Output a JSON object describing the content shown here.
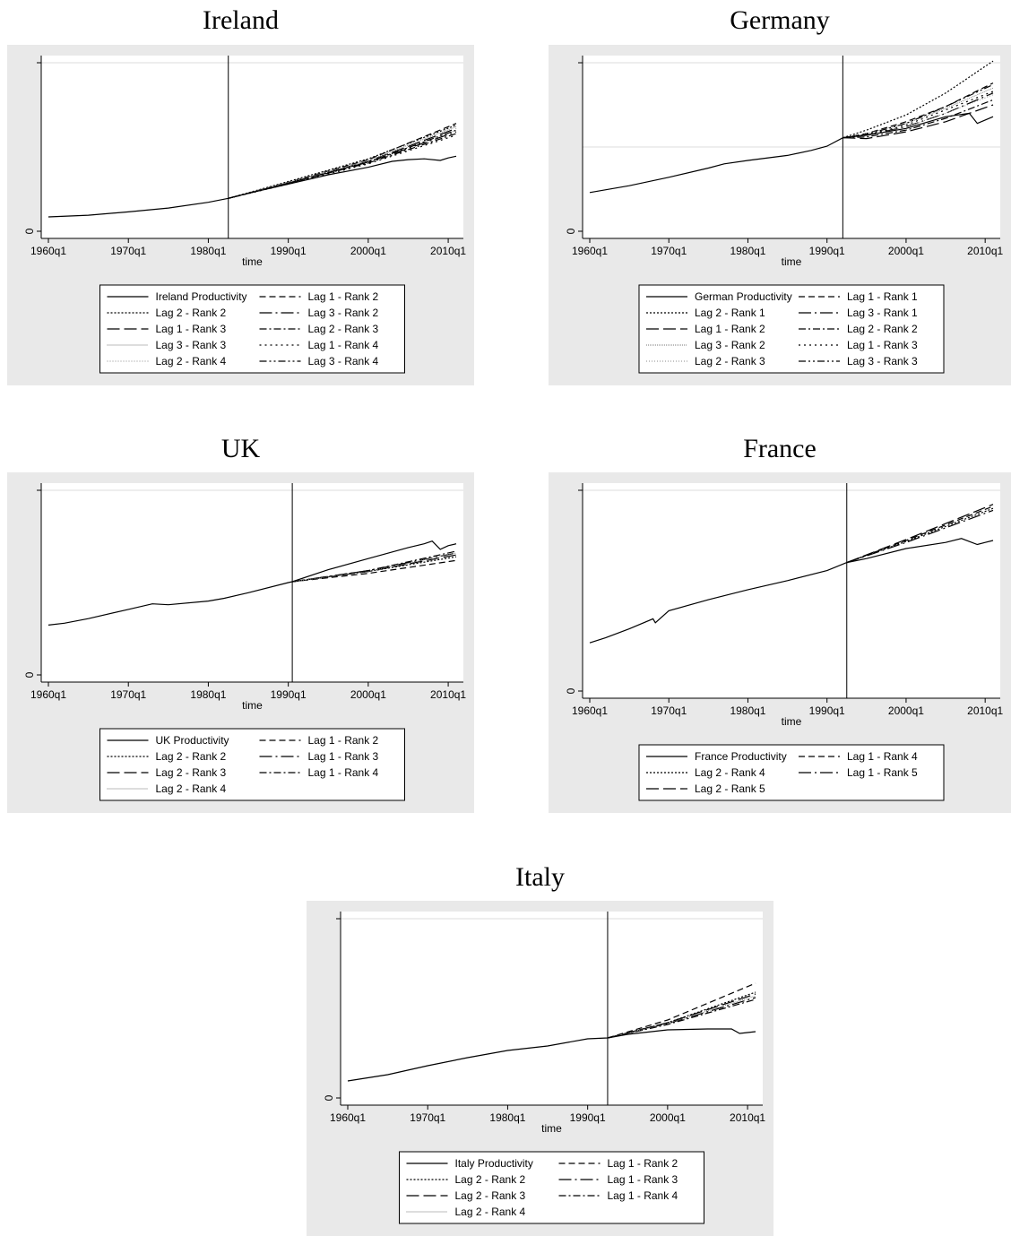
{
  "titles": {
    "ireland": "Ireland",
    "germany": "Germany",
    "uk": "UK",
    "france": "France",
    "italy": "Italy"
  },
  "chart_data": [
    {
      "key": "ireland",
      "type": "line",
      "title": "Ireland",
      "xlabel": "time",
      "ylabel": "",
      "xlim": [
        1960.0,
        2011.0
      ],
      "xticks": [
        "1960q1",
        "1970q1",
        "1980q1",
        "1990q1",
        "2000q1",
        "2010q1"
      ],
      "yticks": [
        "0"
      ],
      "ylim": [
        0,
        100
      ],
      "vline": 1982.5,
      "legend_cols": 2,
      "series": [
        {
          "name": "Ireland Productivity",
          "style": "solid",
          "x": [
            1960,
            1965,
            1970,
            1975,
            1980,
            1982.5,
            1985,
            1990,
            1995,
            2000,
            2003,
            2005,
            2007,
            2009,
            2010,
            2011
          ],
          "y": [
            8.5,
            9.5,
            11.5,
            13.8,
            17.2,
            19.5,
            22.5,
            28,
            33.5,
            38,
            41.5,
            42.5,
            43,
            42,
            43.5,
            44.5
          ]
        },
        {
          "name": "Lag 1 - Rank 2",
          "style": "dash",
          "x": [
            1982.5,
            1990,
            2000,
            2011
          ],
          "y": [
            19.5,
            29,
            42.5,
            64
          ]
        },
        {
          "name": "Lag 2 - Rank 2",
          "style": "dot",
          "x": [
            1982.5,
            1990,
            2000,
            2011
          ],
          "y": [
            19.5,
            29.5,
            43,
            63
          ]
        },
        {
          "name": "Lag 3 - Rank 2",
          "style": "longdashdot",
          "x": [
            1982.5,
            1990,
            2000,
            2011
          ],
          "y": [
            19.5,
            28.5,
            41,
            59
          ]
        },
        {
          "name": "Lag 1 - Rank 3",
          "style": "longdash",
          "x": [
            1982.5,
            1990,
            2000,
            2011
          ],
          "y": [
            19.5,
            28.5,
            41.5,
            61
          ]
        },
        {
          "name": "Lag 2 - Rank 3",
          "style": "dashdot",
          "x": [
            1982.5,
            1990,
            2000,
            2011
          ],
          "y": [
            19.5,
            28.5,
            40.5,
            58
          ]
        },
        {
          "name": "Lag 3 - Rank 3",
          "style": "faint",
          "x": [
            1982.5,
            1990,
            2000,
            2011
          ],
          "y": [
            19.5,
            29,
            42,
            62
          ]
        },
        {
          "name": "Lag 1 - Rank 4",
          "style": "sparsedot",
          "x": [
            1982.5,
            1990,
            2000,
            2011
          ],
          "y": [
            19.5,
            28,
            40,
            57
          ]
        },
        {
          "name": "Lag 2 - Rank 4",
          "style": "faint2",
          "x": [
            1982.5,
            1990,
            2000,
            2011
          ],
          "y": [
            19.5,
            29,
            41.5,
            60
          ]
        },
        {
          "name": "Lag 3 - Rank 4",
          "style": "dashdotdot",
          "x": [
            1982.5,
            1990,
            2000,
            2011
          ],
          "y": [
            19.5,
            28.5,
            41,
            60
          ]
        }
      ]
    },
    {
      "key": "germany",
      "type": "line",
      "title": "Germany",
      "xlabel": "time",
      "ylabel": "",
      "xlim": [
        1960.0,
        2011.0
      ],
      "xticks": [
        "1960q1",
        "1970q1",
        "1980q1",
        "1990q1",
        "2000q1",
        "2010q1"
      ],
      "yticks": [
        "0"
      ],
      "ylim": [
        0,
        100
      ],
      "vline": 1992.0,
      "legend_cols": 2,
      "series": [
        {
          "name": "German Productivity",
          "style": "solid",
          "x": [
            1960,
            1965,
            1970,
            1975,
            1977,
            1980,
            1985,
            1988,
            1990,
            1992,
            1995,
            2000,
            2005,
            2008,
            2009,
            2010,
            2011
          ],
          "y": [
            23,
            27,
            32,
            37.5,
            40,
            42,
            45,
            48,
            50.5,
            55.5,
            57,
            61,
            68,
            70,
            64,
            66,
            68
          ]
        },
        {
          "name": "Lag 1 - Rank 1",
          "style": "dash",
          "x": [
            1992,
            1995,
            2000,
            2005,
            2011
          ],
          "y": [
            55.5,
            58,
            65,
            74,
            88
          ]
        },
        {
          "name": "Lag 2 - Rank 1",
          "style": "dot",
          "x": [
            1992,
            1995,
            2000,
            2005,
            2011
          ],
          "y": [
            55.5,
            60,
            69,
            82,
            101
          ]
        },
        {
          "name": "Lag 3 - Rank 1",
          "style": "longdashdot",
          "x": [
            1992,
            1995,
            2000,
            2005,
            2011
          ],
          "y": [
            55.5,
            57,
            62,
            70,
            82
          ]
        },
        {
          "name": "Lag 1 - Rank 2",
          "style": "longdash",
          "x": [
            1992,
            1995,
            2000,
            2005,
            2011
          ],
          "y": [
            55.5,
            55,
            59,
            65,
            75
          ]
        },
        {
          "name": "Lag 2 - Rank 2",
          "style": "dashdot",
          "x": [
            1992,
            1995,
            2000,
            2005,
            2011
          ],
          "y": [
            55.5,
            56,
            60,
            67,
            78
          ]
        },
        {
          "name": "Lag 3 - Rank 2",
          "style": "faint",
          "x": [
            1992,
            1995,
            2000,
            2005,
            2011
          ],
          "y": [
            55.5,
            58,
            64,
            73,
            85
          ]
        },
        {
          "name": "Lag 1 - Rank 3",
          "style": "sparsedot",
          "x": [
            1992,
            1995,
            2000,
            2005,
            2011
          ],
          "y": [
            55.5,
            57,
            63,
            72,
            83
          ]
        },
        {
          "name": "Lag 2 - Rank 3",
          "style": "faint2",
          "x": [
            1992,
            1995,
            2000,
            2005,
            2011
          ],
          "y": [
            55.5,
            56.5,
            62,
            70,
            81
          ]
        },
        {
          "name": "Lag 3 - Rank 3",
          "style": "dashdotdot",
          "x": [
            1992,
            1995,
            2000,
            2005,
            2011
          ],
          "y": [
            55.5,
            57.5,
            64,
            74,
            87
          ]
        }
      ]
    },
    {
      "key": "uk",
      "type": "line",
      "title": "UK",
      "xlabel": "time",
      "ylabel": "",
      "xlim": [
        1960.0,
        2011.0
      ],
      "xticks": [
        "1960q1",
        "1970q1",
        "1980q1",
        "1990q1",
        "2000q1",
        "2010q1"
      ],
      "yticks": [
        "0"
      ],
      "ylim": [
        0,
        100
      ],
      "vline": 1990.5,
      "legend_cols": 2,
      "series": [
        {
          "name": "UK Productivity",
          "style": "solid",
          "x": [
            1960,
            1962,
            1965,
            1970,
            1973,
            1975,
            1980,
            1982,
            1985,
            1990,
            1990.5,
            1995,
            2000,
            2005,
            2007,
            2008,
            2009,
            2010,
            2011
          ],
          "y": [
            27,
            28,
            30.5,
            35.5,
            38.5,
            38,
            40,
            41.5,
            44.5,
            50,
            50.5,
            57,
            63,
            69,
            71,
            72.5,
            68,
            70,
            71
          ]
        },
        {
          "name": "Lag 1 - Rank 2",
          "style": "dash",
          "x": [
            1990.5,
            2000,
            2011
          ],
          "y": [
            50.5,
            55,
            62
          ]
        },
        {
          "name": "Lag 2 - Rank 2",
          "style": "dot",
          "x": [
            1990.5,
            2000,
            2011
          ],
          "y": [
            50.5,
            56,
            64
          ]
        },
        {
          "name": "Lag 1 - Rank 3",
          "style": "longdashdot",
          "x": [
            1990.5,
            2000,
            2011
          ],
          "y": [
            50.5,
            56.5,
            66
          ]
        },
        {
          "name": "Lag 2 - Rank 3",
          "style": "longdash",
          "x": [
            1990.5,
            2000,
            2011
          ],
          "y": [
            50.5,
            56,
            65
          ]
        },
        {
          "name": "Lag 1 - Rank 4",
          "style": "dashdot",
          "x": [
            1990.5,
            2000,
            2011
          ],
          "y": [
            50.5,
            56.5,
            67
          ]
        },
        {
          "name": "Lag 2 - Rank 4",
          "style": "faint",
          "x": [
            1990.5,
            2000,
            2011
          ],
          "y": [
            50.5,
            56,
            66
          ]
        }
      ]
    },
    {
      "key": "france",
      "type": "line",
      "title": "France",
      "xlabel": "time",
      "ylabel": "",
      "xlim": [
        1960.0,
        2011.0
      ],
      "xticks": [
        "1960q1",
        "1970q1",
        "1980q1",
        "1990q1",
        "2000q1",
        "2010q1"
      ],
      "yticks": [
        "0"
      ],
      "ylim": [
        0,
        100
      ],
      "vline": 1992.5,
      "legend_cols": 2,
      "series": [
        {
          "name": "France Productivity",
          "style": "solid",
          "x": [
            1960,
            1962,
            1965,
            1968,
            1968.3,
            1970,
            1975,
            1980,
            1985,
            1990,
            1992.5,
            1995,
            2000,
            2005,
            2007,
            2009,
            2010,
            2011
          ],
          "y": [
            24,
            26.5,
            31,
            36,
            34,
            40,
            45.5,
            50.5,
            55,
            60,
            64,
            66,
            71,
            74,
            76,
            73,
            74,
            75
          ]
        },
        {
          "name": "Lag 1 - Rank 4",
          "style": "dash",
          "x": [
            1992.5,
            2000,
            2011
          ],
          "y": [
            64,
            75,
            92
          ]
        },
        {
          "name": "Lag 2 - Rank 4",
          "style": "dot",
          "x": [
            1992.5,
            2000,
            2011
          ],
          "y": [
            64,
            74.5,
            91
          ]
        },
        {
          "name": "Lag 1 - Rank 5",
          "style": "longdashdot",
          "x": [
            1992.5,
            2000,
            2011
          ],
          "y": [
            64,
            74,
            90
          ]
        },
        {
          "name": "Lag 2 - Rank 5",
          "style": "longdash",
          "x": [
            1992.5,
            2000,
            2011
          ],
          "y": [
            64,
            75.5,
            93
          ]
        }
      ]
    },
    {
      "key": "italy",
      "type": "line",
      "title": "Italy",
      "xlabel": "time",
      "ylabel": "",
      "xlim": [
        1960.0,
        2011.0
      ],
      "xticks": [
        "1960q1",
        "1970q1",
        "1980q1",
        "1990q1",
        "2000q1",
        "2010q1"
      ],
      "yticks": [
        "0"
      ],
      "ylim": [
        0,
        100
      ],
      "vline": 1992.5,
      "legend_cols": 2,
      "series": [
        {
          "name": "Italy Productivity",
          "style": "solid",
          "x": [
            1960,
            1965,
            1970,
            1975,
            1980,
            1985,
            1990,
            1992.5,
            1995,
            2000,
            2005,
            2008,
            2009,
            2010,
            2011
          ],
          "y": [
            9.5,
            13,
            18,
            22.5,
            26.5,
            29,
            33,
            33.5,
            35.5,
            38,
            38.5,
            38.5,
            36,
            36.5,
            37
          ]
        },
        {
          "name": "Lag 1 - Rank 2",
          "style": "dash",
          "x": [
            1992.5,
            2000,
            2011
          ],
          "y": [
            33.5,
            43.5,
            64
          ]
        },
        {
          "name": "Lag 2 - Rank 2",
          "style": "dot",
          "x": [
            1992.5,
            2000,
            2011
          ],
          "y": [
            33.5,
            42,
            59
          ]
        },
        {
          "name": "Lag 1 - Rank 3",
          "style": "longdashdot",
          "x": [
            1992.5,
            2000,
            2011
          ],
          "y": [
            33.5,
            41.5,
            56
          ]
        },
        {
          "name": "Lag 2 - Rank 3",
          "style": "longdash",
          "x": [
            1992.5,
            2000,
            2011
          ],
          "y": [
            33.5,
            42,
            58
          ]
        },
        {
          "name": "Lag 1 - Rank 4",
          "style": "dashdot",
          "x": [
            1992.5,
            2000,
            2011
          ],
          "y": [
            33.5,
            41,
            55
          ]
        },
        {
          "name": "Lag 2 - Rank 4",
          "style": "faint",
          "x": [
            1992.5,
            2000,
            2011
          ],
          "y": [
            33.5,
            41.5,
            57
          ]
        }
      ]
    }
  ]
}
